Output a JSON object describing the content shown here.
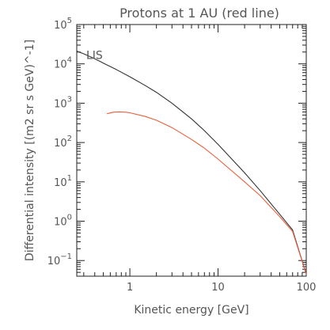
{
  "chart_data": {
    "type": "line",
    "title": "Protons at 1 AU (red line)",
    "xlabel": "Kinetic energy [GeV]",
    "ylabel": "Differential intensity [(m2 sr s GeV)^-1]",
    "x_scale": "log",
    "y_scale": "log",
    "xlim": [
      0.25,
      100
    ],
    "ylim": [
      0.04,
      100000
    ],
    "x_ticks": [
      {
        "value": 1,
        "label": "1"
      },
      {
        "value": 10,
        "label": "10"
      },
      {
        "value": 100,
        "label": "100"
      }
    ],
    "y_ticks": [
      {
        "value": 0.1,
        "base": "10",
        "exp": "−1"
      },
      {
        "value": 1,
        "base": "10",
        "exp": "0"
      },
      {
        "value": 10,
        "base": "10",
        "exp": "1"
      },
      {
        "value": 100,
        "base": "10",
        "exp": "2"
      },
      {
        "value": 1000,
        "base": "10",
        "exp": "3"
      },
      {
        "value": 10000,
        "base": "10",
        "exp": "4"
      },
      {
        "value": 100000,
        "base": "10",
        "exp": "5"
      }
    ],
    "annotations": [
      {
        "text": "LIS",
        "x": 0.32,
        "y": 10000
      }
    ],
    "series": [
      {
        "name": "LIS",
        "color": "#333333",
        "points": [
          [
            0.25,
            21000
          ],
          [
            0.3,
            18000
          ],
          [
            0.4,
            13500
          ],
          [
            0.5,
            10500
          ],
          [
            0.7,
            7200
          ],
          [
            1,
            4700
          ],
          [
            1.5,
            2800
          ],
          [
            2,
            1900
          ],
          [
            3,
            1000
          ],
          [
            5,
            400
          ],
          [
            7,
            200
          ],
          [
            10,
            90
          ],
          [
            20,
            17
          ],
          [
            30,
            6
          ],
          [
            50,
            1.5
          ],
          [
            70,
            0.6
          ],
          [
            100,
            0.045
          ]
        ]
      },
      {
        "name": "Protons at 1 AU",
        "color": "#e8603c",
        "points": [
          [
            0.55,
            540
          ],
          [
            0.65,
            590
          ],
          [
            0.75,
            600
          ],
          [
            0.9,
            590
          ],
          [
            1,
            570
          ],
          [
            1.5,
            460
          ],
          [
            2,
            370
          ],
          [
            3,
            240
          ],
          [
            5,
            120
          ],
          [
            7,
            72
          ],
          [
            10,
            38
          ],
          [
            20,
            10
          ],
          [
            30,
            4.5
          ],
          [
            50,
            1.3
          ],
          [
            70,
            0.55
          ],
          [
            100,
            0.045
          ]
        ]
      }
    ]
  }
}
